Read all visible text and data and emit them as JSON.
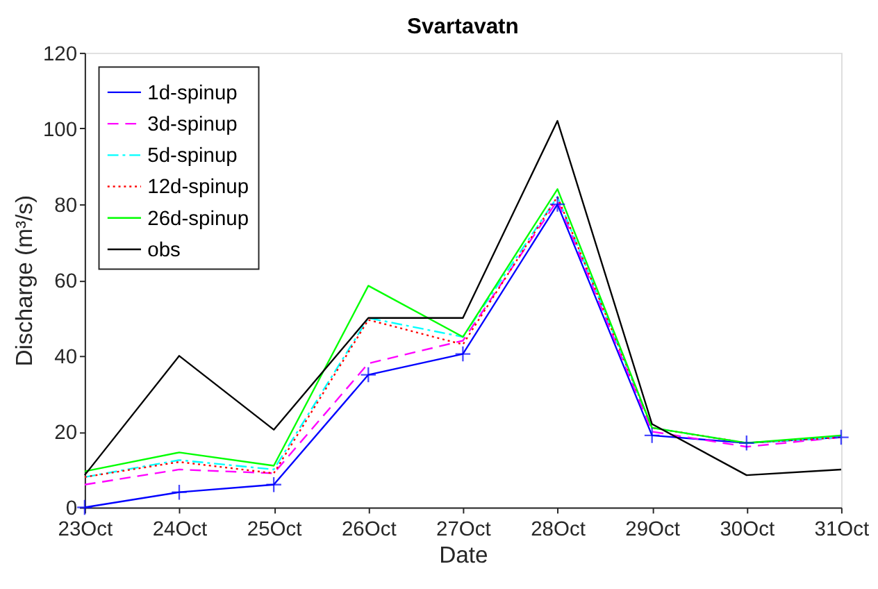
{
  "chart_data": {
    "type": "line",
    "title": "Svartavatn",
    "xlabel": "Date",
    "ylabel": "Discharge (m³/s)",
    "categories": [
      "23Oct",
      "24Oct",
      "25Oct",
      "26Oct",
      "27Oct",
      "28Oct",
      "29Oct",
      "30Oct",
      "31Oct"
    ],
    "ylim": [
      0,
      120
    ],
    "yticks": [
      0,
      20,
      40,
      60,
      80,
      100,
      120
    ],
    "grid": false,
    "legend": "top left",
    "series": [
      {
        "name": "1d-spinup",
        "color": "#0000ff",
        "line_style": "solid",
        "marker": "cross",
        "values": [
          0,
          4,
          6,
          35,
          40.5,
          80,
          19,
          17,
          18.5
        ]
      },
      {
        "name": "3d-spinup",
        "color": "#ff00ff",
        "line_style": "dashed",
        "marker": "none",
        "values": [
          6,
          10,
          9,
          38,
          44,
          81,
          20,
          16,
          18.5
        ]
      },
      {
        "name": "5d-spinup",
        "color": "#00ffff",
        "line_style": "dashdot",
        "marker": "none",
        "values": [
          8,
          12.5,
          10,
          50,
          45,
          82,
          21,
          17,
          18.5
        ]
      },
      {
        "name": "12d-spinup",
        "color": "#ff0000",
        "line_style": "dotted",
        "marker": "none",
        "values": [
          8,
          12,
          9,
          49.5,
          43,
          82,
          21,
          17,
          18.5
        ]
      },
      {
        "name": "26d-spinup",
        "color": "#00ff00",
        "line_style": "solid",
        "marker": "none",
        "values": [
          9.5,
          14.5,
          11,
          58.5,
          45,
          84,
          21,
          17,
          19
        ]
      },
      {
        "name": "obs",
        "color": "#000000",
        "line_style": "solid",
        "marker": "none",
        "values": [
          8.5,
          40,
          20.5,
          50,
          50,
          102,
          22,
          8.5,
          10
        ]
      }
    ]
  }
}
